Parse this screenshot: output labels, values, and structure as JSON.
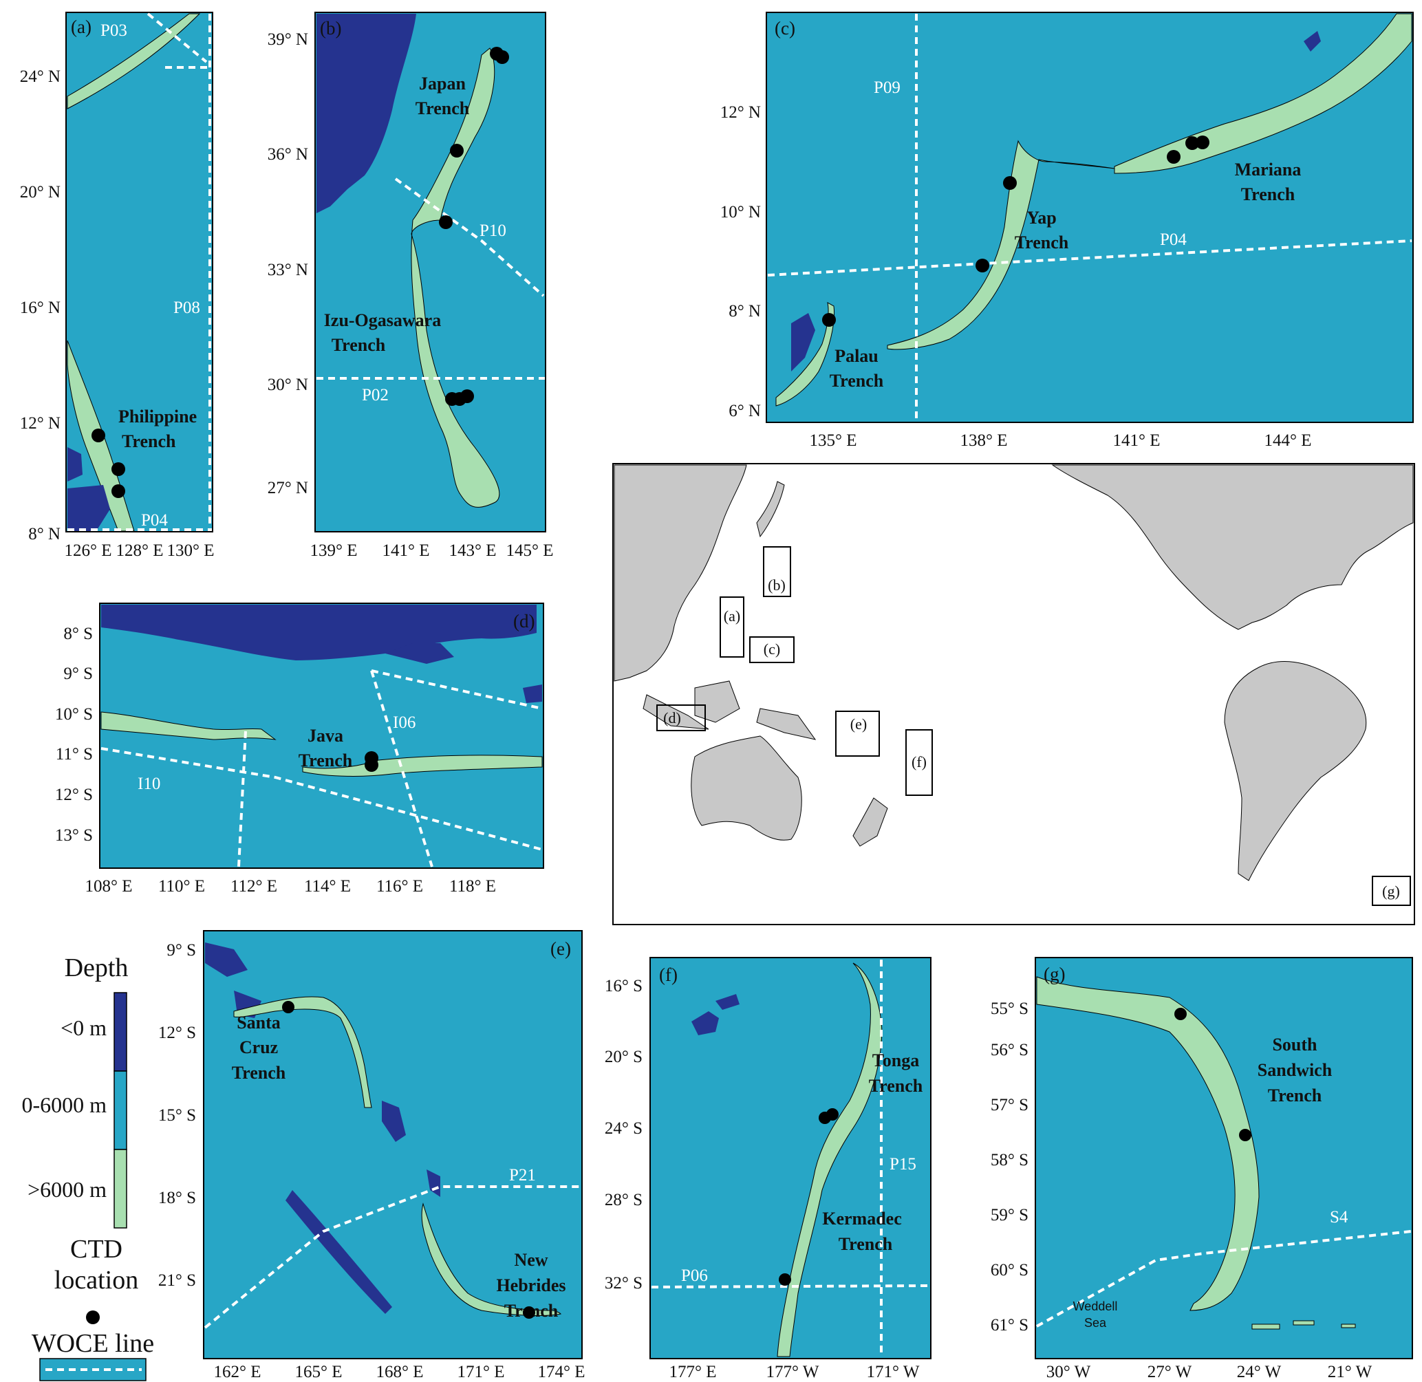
{
  "colors": {
    "deep": "#a8dfb0",
    "mid": "#27a6c6",
    "land": "#25338f",
    "woce": "#ffffff",
    "ctd": "#000000",
    "continent": "#c8c8c8"
  },
  "panels": {
    "a": {
      "label": "(a)",
      "lat_ticks": [
        "24° N",
        "20° N",
        "16° N",
        "12° N",
        "8° N"
      ],
      "lon_ticks": [
        "126° E",
        "128° E",
        "130° E"
      ],
      "trenches": [
        "Philippine",
        "Trench"
      ],
      "woce": [
        "P03",
        "P08",
        "P04"
      ]
    },
    "b": {
      "label": "(b)",
      "lat_ticks": [
        "39° N",
        "36° N",
        "33° N",
        "30° N",
        "27° N"
      ],
      "lon_ticks": [
        "139° E",
        "141° E",
        "143° E",
        "145° E"
      ],
      "trench_japan": [
        "Japan",
        "Trench"
      ],
      "trench_izu": [
        "Izu-Ogasawara",
        "Trench"
      ],
      "woce": [
        "P10",
        "P02"
      ]
    },
    "c": {
      "label": "(c)",
      "lat_ticks": [
        "12° N",
        "10° N",
        "8° N",
        "6° N"
      ],
      "lon_ticks": [
        "135° E",
        "138° E",
        "141° E",
        "144° E"
      ],
      "trench_mariana": [
        "Mariana",
        "Trench"
      ],
      "trench_yap": [
        "Yap",
        "Trench"
      ],
      "trench_palau": [
        "Palau",
        "Trench"
      ],
      "woce": [
        "P09",
        "P04"
      ]
    },
    "d": {
      "label": "(d)",
      "lat_ticks": [
        "8° S",
        "9° S",
        "10° S",
        "11° S",
        "12° S",
        "13° S"
      ],
      "lon_ticks": [
        "108° E",
        "110° E",
        "112° E",
        "114° E",
        "116° E",
        "118° E"
      ],
      "trench_java": [
        "Java",
        "Trench"
      ],
      "woce": [
        "I06",
        "I10"
      ]
    },
    "e": {
      "label": "(e)",
      "lat_ticks": [
        "9° S",
        "12° S",
        "15° S",
        "18° S",
        "21° S"
      ],
      "lon_ticks": [
        "162° E",
        "165° E",
        "168° E",
        "171° E",
        "174° E"
      ],
      "trench_sc": [
        "Santa",
        "Cruz",
        "Trench"
      ],
      "trench_nh": [
        "New",
        "Hebrides",
        "Trench"
      ],
      "woce": [
        "P21"
      ]
    },
    "f": {
      "label": "(f)",
      "lat_ticks": [
        "16° S",
        "20° S",
        "24° S",
        "28° S",
        "32° S"
      ],
      "lon_ticks": [
        "177° E",
        "177° W",
        "171° W"
      ],
      "trench_tonga": [
        "Tonga",
        "Trench"
      ],
      "trench_kermadec": [
        "Kermadec",
        "Trench"
      ],
      "woce": [
        "P15",
        "P06"
      ]
    },
    "g": {
      "label": "(g)",
      "lat_ticks": [
        "55° S",
        "56° S",
        "57° S",
        "58° S",
        "59° S",
        "60° S",
        "61° S"
      ],
      "lon_ticks": [
        "30° W",
        "27° W",
        "24° W",
        "21° W"
      ],
      "trench_ss": [
        "South",
        "Sandwich",
        "Trench"
      ],
      "sea": [
        "Weddell",
        "Sea"
      ],
      "woce": [
        "S4"
      ]
    }
  },
  "overview": {
    "boxes": [
      "(a)",
      "(b)",
      "(c)",
      "(d)",
      "(e)",
      "(f)",
      "(g)"
    ]
  },
  "legend": {
    "depth_title": "Depth",
    "depth_labels": [
      "<0 m",
      "0-6000 m",
      ">6000 m"
    ],
    "ctd_title": [
      "CTD",
      "location"
    ],
    "woce_title": "WOCE line"
  }
}
